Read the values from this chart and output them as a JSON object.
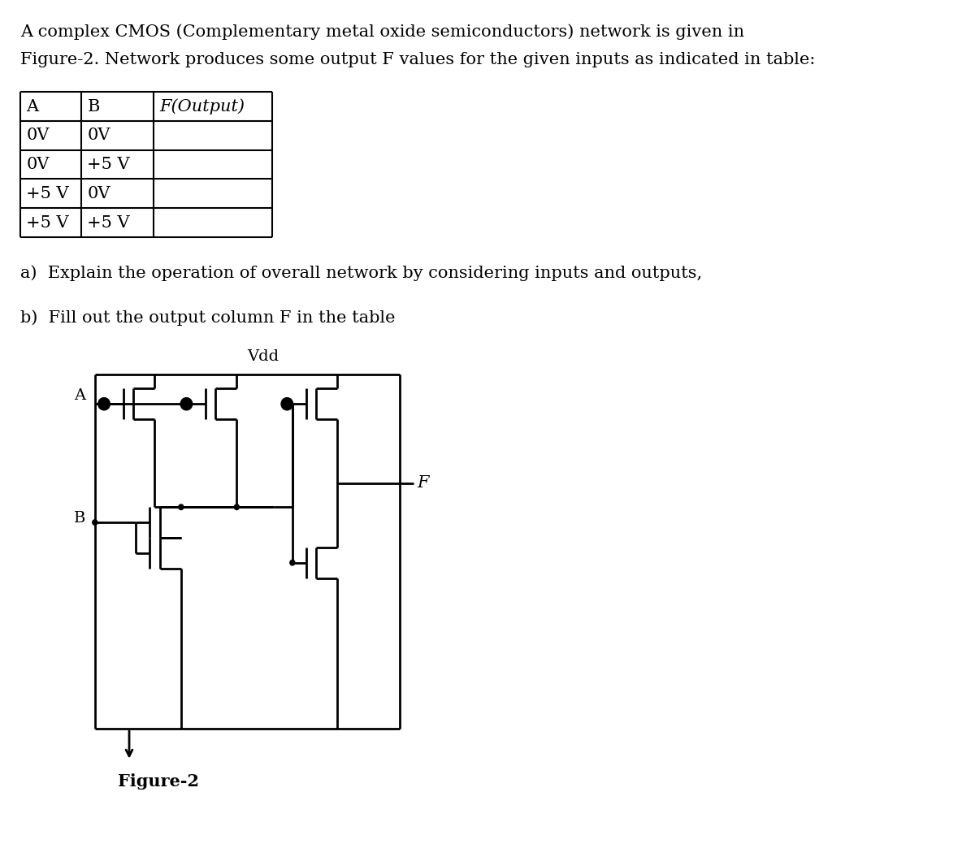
{
  "title_line1": "A complex CMOS (Complementary metal oxide semiconductors) network is given in",
  "title_line2": "Figure-2. Network produces some output  F values for the given inputs as indicated in table:",
  "title_line2_plain": "Figure-2. Network produces some output F values for the given inputs as indicated in table:",
  "table_headers": [
    "A",
    "B",
    "F(Output)"
  ],
  "table_rows": [
    [
      "0V",
      "0V",
      ""
    ],
    [
      "0V",
      "+5 V",
      ""
    ],
    [
      "+5 V",
      "0V",
      ""
    ],
    [
      "+5 V",
      "+5 V",
      ""
    ]
  ],
  "question_a": "a)  Explain the operation of overall network by considering inputs and outputs,",
  "question_b": "b)  Fill out the output column F in the table",
  "figure_label": "Figure-2",
  "vdd_label": "Vdd",
  "output_label": "F",
  "input_a_label": "A",
  "input_b_label": "B",
  "line_color": "#000000",
  "bg_color": "#ffffff",
  "lw": 2.0,
  "font_size_body": 15,
  "font_size_table": 15,
  "font_size_circuit": 13
}
